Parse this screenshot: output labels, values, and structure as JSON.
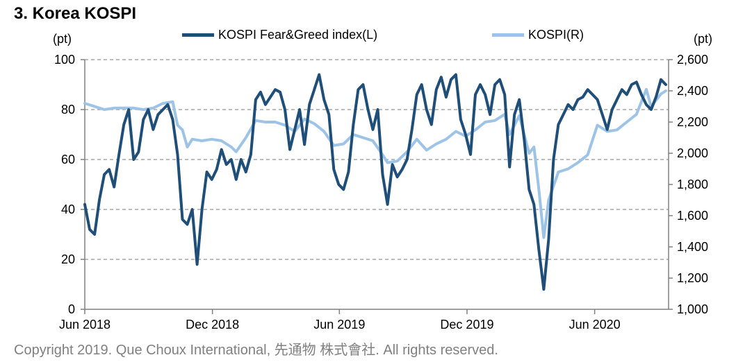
{
  "title": "3. Korea KOSPI",
  "unit_left": "(pt)",
  "unit_right": "(pt)",
  "copyright": "Copyright 2019. Que Choux International, 先通物 株式會社. All rights reserved.",
  "colors": {
    "fear_greed": "#1f4e79",
    "kospi": "#9dc3e6",
    "grid": "#a6a6a6",
    "axis": "#808080"
  },
  "chart_data": {
    "type": "line",
    "x_tick_labels": [
      "Jun 2018",
      "Dec 2018",
      "Jun 2019",
      "Dec 2019",
      "Jun 2020"
    ],
    "x_range": [
      "2018-06-01",
      "2020-09-15"
    ],
    "left_axis": {
      "ticks": [
        "0",
        "20",
        "40",
        "60",
        "80",
        "100"
      ],
      "ylim": [
        0,
        100
      ]
    },
    "right_axis": {
      "ticks": [
        "1,000",
        "1,200",
        "1,400",
        "1,600",
        "1,800",
        "2,000",
        "2,200",
        "2,400",
        "2,600"
      ],
      "ylim": [
        1000,
        2600
      ]
    },
    "grid": true,
    "legend_position": "top",
    "series": [
      {
        "name": "KOSPI Fear&Greed index(L)",
        "axis": "left",
        "points": [
          [
            "2018-06-01",
            42
          ],
          [
            "2018-06-08",
            32
          ],
          [
            "2018-06-15",
            30
          ],
          [
            "2018-06-22",
            44
          ],
          [
            "2018-06-29",
            54
          ],
          [
            "2018-07-06",
            56
          ],
          [
            "2018-07-13",
            49
          ],
          [
            "2018-07-20",
            62
          ],
          [
            "2018-07-27",
            74
          ],
          [
            "2018-08-03",
            80
          ],
          [
            "2018-08-10",
            60
          ],
          [
            "2018-08-17",
            63
          ],
          [
            "2018-08-24",
            76
          ],
          [
            "2018-08-31",
            80
          ],
          [
            "2018-09-07",
            72
          ],
          [
            "2018-09-14",
            78
          ],
          [
            "2018-09-21",
            80
          ],
          [
            "2018-09-28",
            82
          ],
          [
            "2018-10-05",
            76
          ],
          [
            "2018-10-12",
            62
          ],
          [
            "2018-10-19",
            36
          ],
          [
            "2018-10-26",
            34
          ],
          [
            "2018-11-02",
            40
          ],
          [
            "2018-11-09",
            18
          ],
          [
            "2018-11-16",
            40
          ],
          [
            "2018-11-23",
            55
          ],
          [
            "2018-11-30",
            52
          ],
          [
            "2018-12-07",
            56
          ],
          [
            "2018-12-14",
            64
          ],
          [
            "2018-12-21",
            58
          ],
          [
            "2018-12-28",
            60
          ],
          [
            "2019-01-04",
            52
          ],
          [
            "2019-01-11",
            60
          ],
          [
            "2019-01-18",
            55
          ],
          [
            "2019-01-25",
            62
          ],
          [
            "2019-02-01",
            84
          ],
          [
            "2019-02-08",
            87
          ],
          [
            "2019-02-15",
            82
          ],
          [
            "2019-02-22",
            85
          ],
          [
            "2019-03-01",
            88
          ],
          [
            "2019-03-08",
            87
          ],
          [
            "2019-03-15",
            80
          ],
          [
            "2019-03-22",
            64
          ],
          [
            "2019-03-29",
            72
          ],
          [
            "2019-04-05",
            80
          ],
          [
            "2019-04-12",
            66
          ],
          [
            "2019-04-19",
            82
          ],
          [
            "2019-04-26",
            88
          ],
          [
            "2019-05-03",
            94
          ],
          [
            "2019-05-10",
            84
          ],
          [
            "2019-05-17",
            78
          ],
          [
            "2019-05-24",
            56
          ],
          [
            "2019-05-31",
            50
          ],
          [
            "2019-06-07",
            48
          ],
          [
            "2019-06-14",
            55
          ],
          [
            "2019-06-21",
            74
          ],
          [
            "2019-06-28",
            88
          ],
          [
            "2019-07-05",
            90
          ],
          [
            "2019-07-12",
            80
          ],
          [
            "2019-07-19",
            72
          ],
          [
            "2019-07-26",
            80
          ],
          [
            "2019-08-02",
            54
          ],
          [
            "2019-08-09",
            42
          ],
          [
            "2019-08-16",
            58
          ],
          [
            "2019-08-23",
            53
          ],
          [
            "2019-08-30",
            56
          ],
          [
            "2019-09-06",
            60
          ],
          [
            "2019-09-13",
            72
          ],
          [
            "2019-09-20",
            86
          ],
          [
            "2019-09-27",
            90
          ],
          [
            "2019-10-04",
            80
          ],
          [
            "2019-10-11",
            74
          ],
          [
            "2019-10-18",
            88
          ],
          [
            "2019-10-25",
            93
          ],
          [
            "2019-11-01",
            85
          ],
          [
            "2019-11-08",
            92
          ],
          [
            "2019-11-15",
            94
          ],
          [
            "2019-11-22",
            76
          ],
          [
            "2019-11-29",
            70
          ],
          [
            "2019-12-06",
            62
          ],
          [
            "2019-12-13",
            86
          ],
          [
            "2019-12-20",
            90
          ],
          [
            "2019-12-27",
            86
          ],
          [
            "2020-01-03",
            78
          ],
          [
            "2020-01-10",
            90
          ],
          [
            "2020-01-17",
            92
          ],
          [
            "2020-01-24",
            86
          ],
          [
            "2020-01-31",
            57
          ],
          [
            "2020-02-07",
            78
          ],
          [
            "2020-02-14",
            84
          ],
          [
            "2020-02-21",
            68
          ],
          [
            "2020-02-28",
            48
          ],
          [
            "2020-03-06",
            42
          ],
          [
            "2020-03-13",
            24
          ],
          [
            "2020-03-20",
            8
          ],
          [
            "2020-03-27",
            28
          ],
          [
            "2020-04-03",
            60
          ],
          [
            "2020-04-10",
            74
          ],
          [
            "2020-04-17",
            78
          ],
          [
            "2020-04-24",
            82
          ],
          [
            "2020-05-01",
            80
          ],
          [
            "2020-05-08",
            84
          ],
          [
            "2020-05-15",
            85
          ],
          [
            "2020-05-22",
            88
          ],
          [
            "2020-05-29",
            86
          ],
          [
            "2020-06-05",
            84
          ],
          [
            "2020-06-12",
            78
          ],
          [
            "2020-06-19",
            72
          ],
          [
            "2020-06-26",
            80
          ],
          [
            "2020-07-03",
            84
          ],
          [
            "2020-07-10",
            88
          ],
          [
            "2020-07-17",
            86
          ],
          [
            "2020-07-24",
            90
          ],
          [
            "2020-07-31",
            91
          ],
          [
            "2020-08-07",
            86
          ],
          [
            "2020-08-14",
            82
          ],
          [
            "2020-08-21",
            80
          ],
          [
            "2020-08-28",
            85
          ],
          [
            "2020-09-04",
            92
          ],
          [
            "2020-09-11",
            90
          ]
        ]
      },
      {
        "name": "KOSPI(R)",
        "axis": "right",
        "points": [
          [
            "2018-06-01",
            2320
          ],
          [
            "2018-06-15",
            2300
          ],
          [
            "2018-06-29",
            2280
          ],
          [
            "2018-07-13",
            2290
          ],
          [
            "2018-07-27",
            2290
          ],
          [
            "2018-08-10",
            2290
          ],
          [
            "2018-08-24",
            2280
          ],
          [
            "2018-09-07",
            2290
          ],
          [
            "2018-09-21",
            2320
          ],
          [
            "2018-10-05",
            2330
          ],
          [
            "2018-10-12",
            2180
          ],
          [
            "2018-10-19",
            2150
          ],
          [
            "2018-10-26",
            2040
          ],
          [
            "2018-11-02",
            2090
          ],
          [
            "2018-11-16",
            2080
          ],
          [
            "2018-11-30",
            2090
          ],
          [
            "2018-12-14",
            2080
          ],
          [
            "2018-12-28",
            2040
          ],
          [
            "2019-01-04",
            2010
          ],
          [
            "2019-01-18",
            2100
          ],
          [
            "2019-02-01",
            2210
          ],
          [
            "2019-02-15",
            2200
          ],
          [
            "2019-03-01",
            2200
          ],
          [
            "2019-03-15",
            2180
          ],
          [
            "2019-03-29",
            2140
          ],
          [
            "2019-04-12",
            2220
          ],
          [
            "2019-04-26",
            2190
          ],
          [
            "2019-05-10",
            2140
          ],
          [
            "2019-05-24",
            2050
          ],
          [
            "2019-06-07",
            2060
          ],
          [
            "2019-06-21",
            2120
          ],
          [
            "2019-07-05",
            2100
          ],
          [
            "2019-07-19",
            2080
          ],
          [
            "2019-08-02",
            1990
          ],
          [
            "2019-08-09",
            1940
          ],
          [
            "2019-08-23",
            1950
          ],
          [
            "2019-09-06",
            2010
          ],
          [
            "2019-09-20",
            2090
          ],
          [
            "2019-10-04",
            2020
          ],
          [
            "2019-10-18",
            2060
          ],
          [
            "2019-11-01",
            2090
          ],
          [
            "2019-11-15",
            2140
          ],
          [
            "2019-11-29",
            2110
          ],
          [
            "2019-12-13",
            2150
          ],
          [
            "2019-12-27",
            2200
          ],
          [
            "2020-01-10",
            2210
          ],
          [
            "2020-01-24",
            2250
          ],
          [
            "2020-01-31",
            2120
          ],
          [
            "2020-02-14",
            2240
          ],
          [
            "2020-02-28",
            2000
          ],
          [
            "2020-03-06",
            2040
          ],
          [
            "2020-03-13",
            1770
          ],
          [
            "2020-03-20",
            1460
          ],
          [
            "2020-03-27",
            1700
          ],
          [
            "2020-04-10",
            1880
          ],
          [
            "2020-04-24",
            1900
          ],
          [
            "2020-05-08",
            1940
          ],
          [
            "2020-05-22",
            1990
          ],
          [
            "2020-06-05",
            2180
          ],
          [
            "2020-06-19",
            2140
          ],
          [
            "2020-07-03",
            2150
          ],
          [
            "2020-07-17",
            2200
          ],
          [
            "2020-07-31",
            2250
          ],
          [
            "2020-08-14",
            2410
          ],
          [
            "2020-08-21",
            2300
          ],
          [
            "2020-09-04",
            2380
          ],
          [
            "2020-09-11",
            2400
          ]
        ]
      }
    ]
  }
}
